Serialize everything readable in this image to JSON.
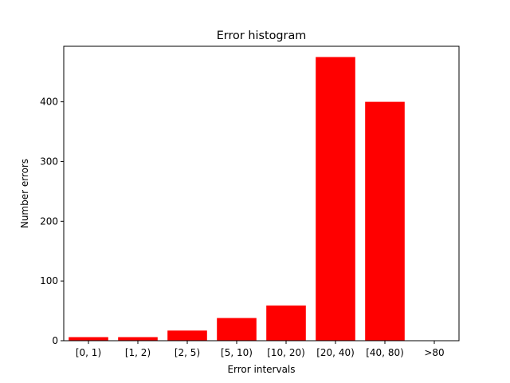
{
  "chart_data": {
    "type": "bar",
    "title": "Error histogram",
    "xlabel": "Error intervals",
    "ylabel": "Number errors",
    "categories": [
      "[0, 1)",
      "[1, 2)",
      "[2, 5)",
      "[5, 10)",
      "[10, 20)",
      "[20, 40)",
      "[40, 80)",
      ">80"
    ],
    "values": [
      6,
      6,
      17,
      38,
      59,
      475,
      400,
      0
    ],
    "ylim": [
      0,
      493
    ],
    "yticks": [
      0,
      100,
      200,
      300,
      400
    ],
    "color": "#ff0000",
    "grid": false,
    "legend": "none"
  }
}
